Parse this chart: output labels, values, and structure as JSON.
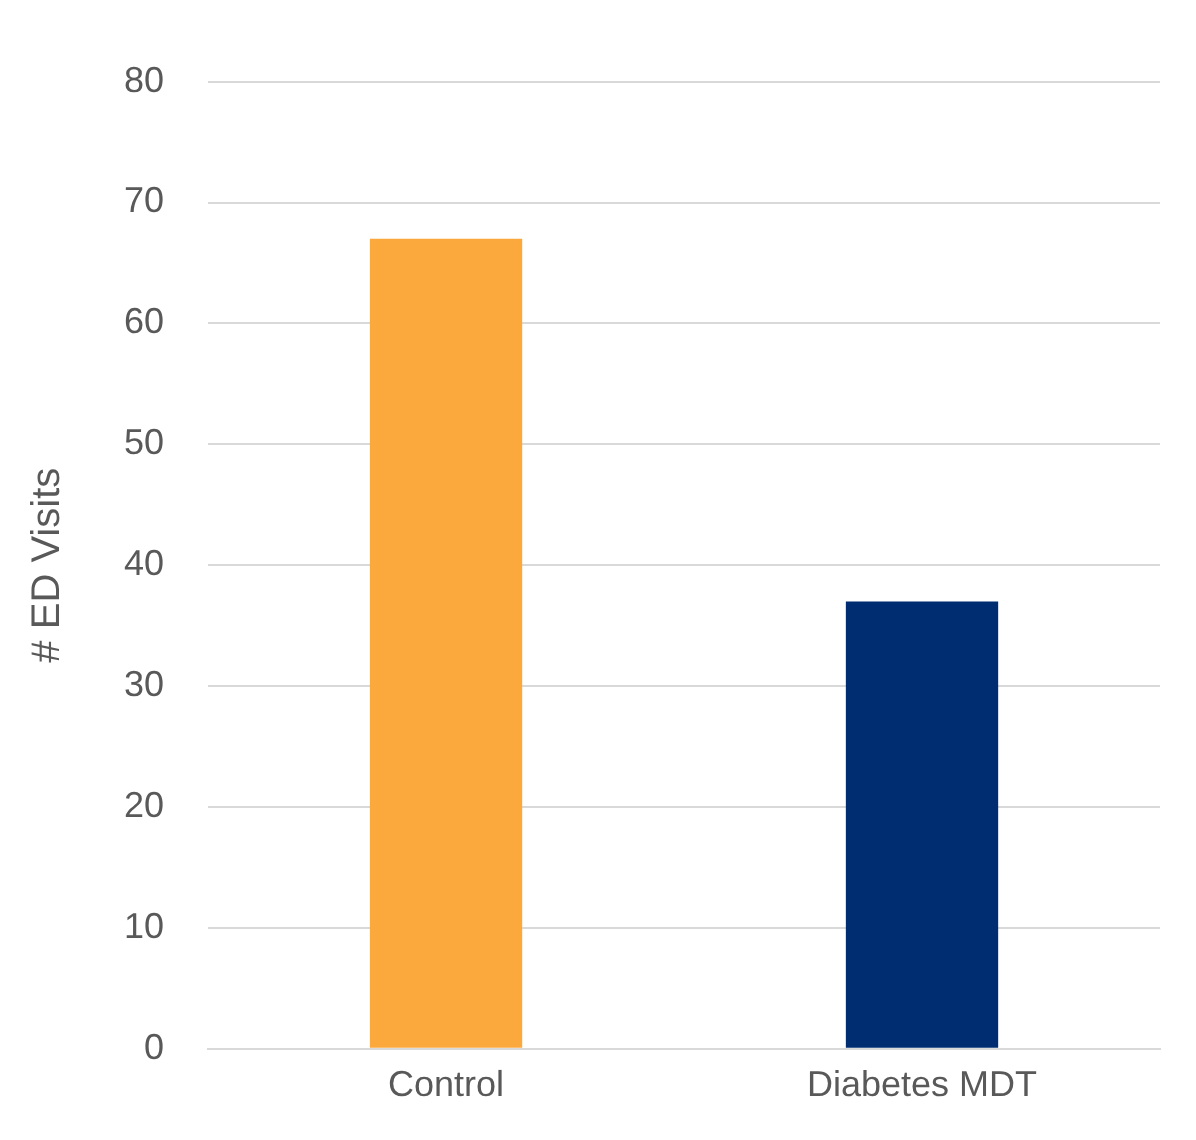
{
  "chart_data": {
    "type": "bar",
    "ylabel": "# ED Visits",
    "categories": [
      "Control",
      "Diabetes MDT"
    ],
    "values": [
      67,
      37
    ],
    "colors": [
      "#fba93d",
      "#002d72"
    ],
    "ylim": [
      0,
      80
    ],
    "yticks": [
      0,
      10,
      20,
      30,
      40,
      50,
      60,
      70,
      80
    ],
    "grid": "y"
  }
}
